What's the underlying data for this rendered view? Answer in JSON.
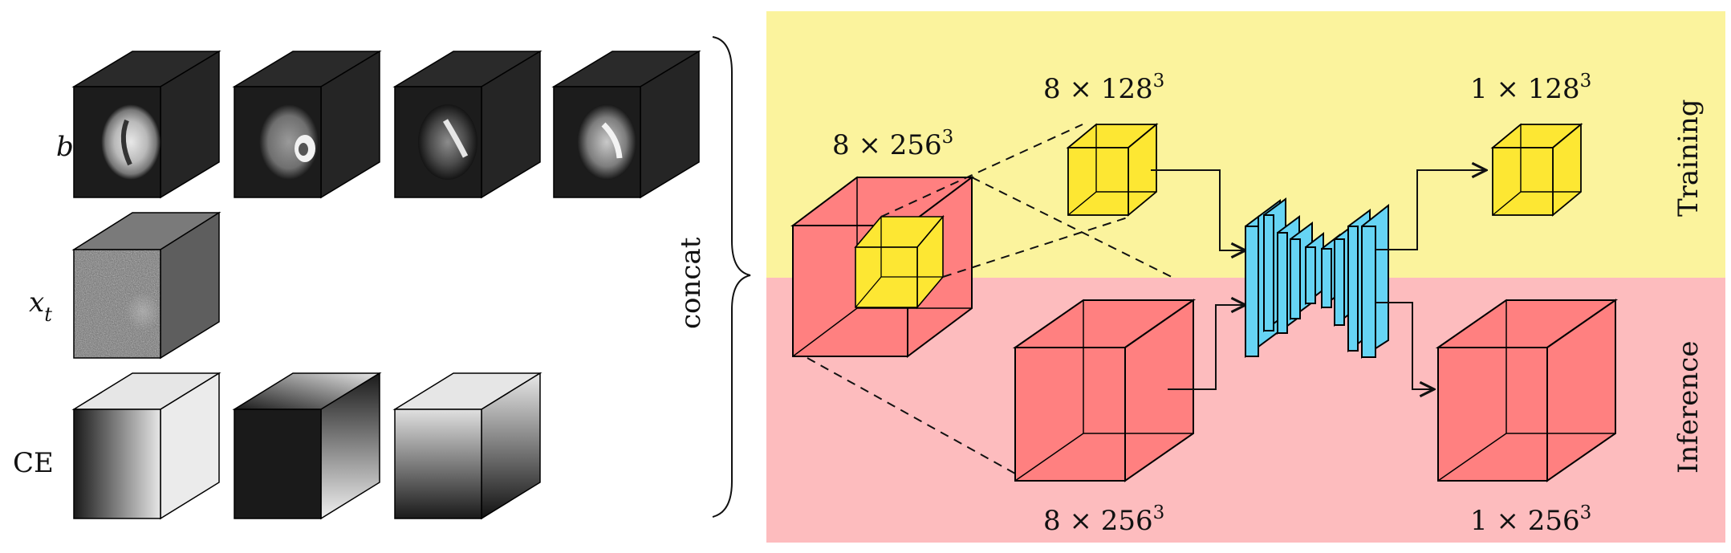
{
  "rows": {
    "b": {
      "label": "b"
    },
    "xt": {
      "label": "x",
      "sub": "t"
    },
    "ce": {
      "label": "CE"
    }
  },
  "concat_label": "concat",
  "regions": {
    "training": {
      "label": "Training",
      "color": "#fbf39d"
    },
    "inference": {
      "label": "Inference",
      "color": "#fdbcbe"
    }
  },
  "volumes": {
    "input_large": {
      "base": "8 × 256",
      "exp": "3",
      "color": "#ff8080"
    },
    "crop_small": {
      "base": "8 × 128",
      "exp": "3",
      "color": "#fde733"
    },
    "input_inference": {
      "base": "8 × 256",
      "exp": "3",
      "color": "#ff8080"
    },
    "output_training": {
      "base": "1 × 128",
      "exp": "3",
      "color": "#fde733"
    },
    "output_inference": {
      "base": "1 × 256",
      "exp": "3",
      "color": "#ff8080"
    }
  },
  "network": {
    "color": "#66d4f4"
  }
}
